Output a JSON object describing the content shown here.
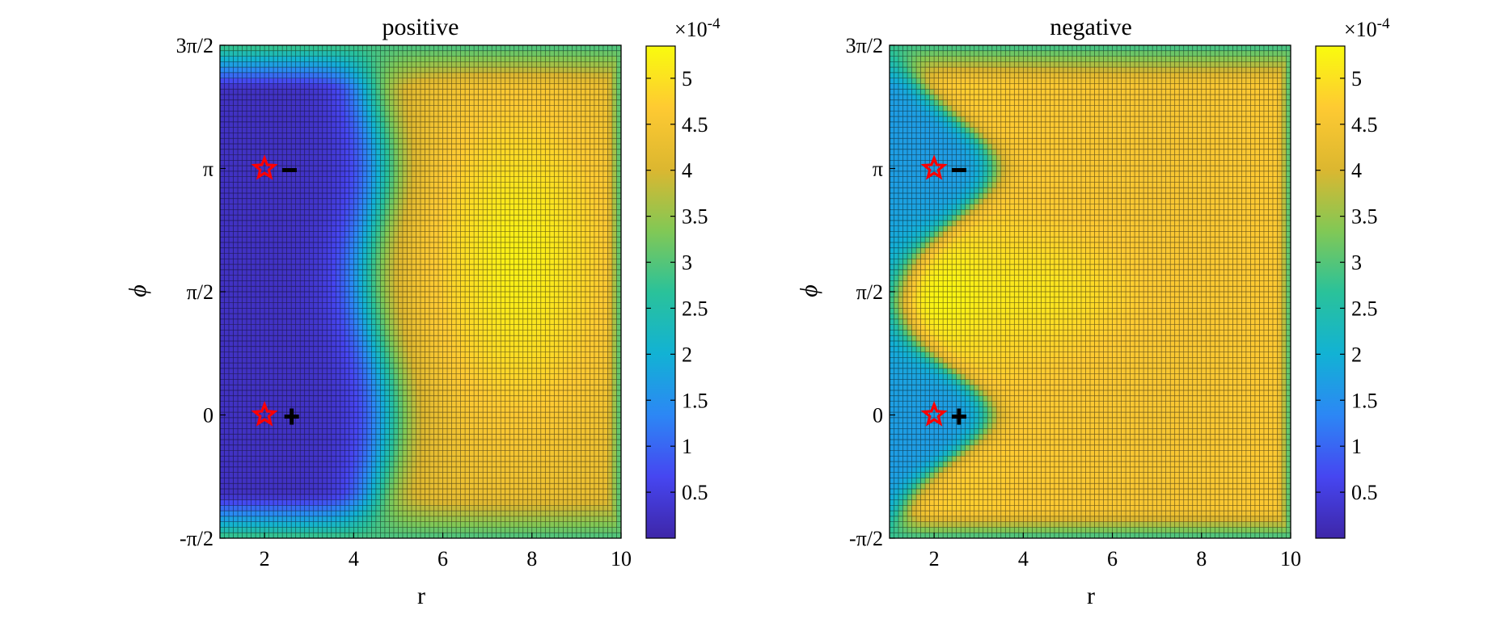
{
  "colorbar_exponent": "×10",
  "colorbar_exponent_power": "-4",
  "colorbar": {
    "range": [
      0.0,
      5.35
    ],
    "ticks": [
      0.5,
      1,
      1.5,
      2,
      2.5,
      3,
      3.5,
      4,
      4.5,
      5
    ],
    "tick_labels": [
      "0.5",
      "1",
      "1.5",
      "2",
      "2.5",
      "3",
      "3.5",
      "4",
      "4.5",
      "5"
    ],
    "colormap_stops": [
      "#3e26a8",
      "#4646f1",
      "#2c87f5",
      "#12b2d4",
      "#2ac29a",
      "#82c855",
      "#dcb730",
      "#feca32",
      "#f9fb0e"
    ]
  },
  "markers": {
    "star_color": "#ff0000",
    "sign_plus": "+",
    "sign_minus": "-"
  },
  "chart_data": [
    {
      "type": "heatmap",
      "title": "positive",
      "xlabel": "r",
      "ylabel": "ϕ",
      "xlim": [
        1,
        10
      ],
      "ylim": [
        -1.5708,
        4.7124
      ],
      "x_ticks": [
        2,
        4,
        6,
        8,
        10
      ],
      "x_tick_labels": [
        "2",
        "4",
        "6",
        "8",
        "10"
      ],
      "y_ticks": [
        -1.5708,
        0,
        1.5708,
        3.1416,
        4.7124
      ],
      "y_tick_labels": [
        "-π/2",
        "0",
        "π/2",
        "π",
        "3π/2"
      ],
      "grid_resolution": [
        90,
        90
      ],
      "value_scale": 0.0001,
      "value_range": [
        0.2,
        5.3
      ],
      "star_markers": [
        {
          "r": 2,
          "phi": 0
        },
        {
          "r": 2,
          "phi": 3.1416
        }
      ],
      "charge_markers": [
        {
          "r": 2.5,
          "phi": 0,
          "sign": "+"
        },
        {
          "r": 2.45,
          "phi": 3.1416,
          "sign": "-"
        }
      ]
    },
    {
      "type": "heatmap",
      "title": "negative",
      "xlabel": "r",
      "ylabel": "ϕ",
      "xlim": [
        1,
        10
      ],
      "ylim": [
        -1.5708,
        4.7124
      ],
      "x_ticks": [
        2,
        4,
        6,
        8,
        10
      ],
      "x_tick_labels": [
        "2",
        "4",
        "6",
        "8",
        "10"
      ],
      "y_ticks": [
        -1.5708,
        0,
        1.5708,
        3.1416,
        4.7124
      ],
      "y_tick_labels": [
        "-π/2",
        "0",
        "π/2",
        "π",
        "3π/2"
      ],
      "grid_resolution": [
        90,
        90
      ],
      "value_scale": 0.0001,
      "value_range": [
        1.5,
        5.3
      ],
      "star_markers": [
        {
          "r": 2,
          "phi": 0
        },
        {
          "r": 2,
          "phi": 3.1416
        }
      ],
      "charge_markers": [
        {
          "r": 2.45,
          "phi": 0,
          "sign": "+"
        },
        {
          "r": 2.45,
          "phi": 3.1416,
          "sign": "-"
        }
      ]
    }
  ]
}
